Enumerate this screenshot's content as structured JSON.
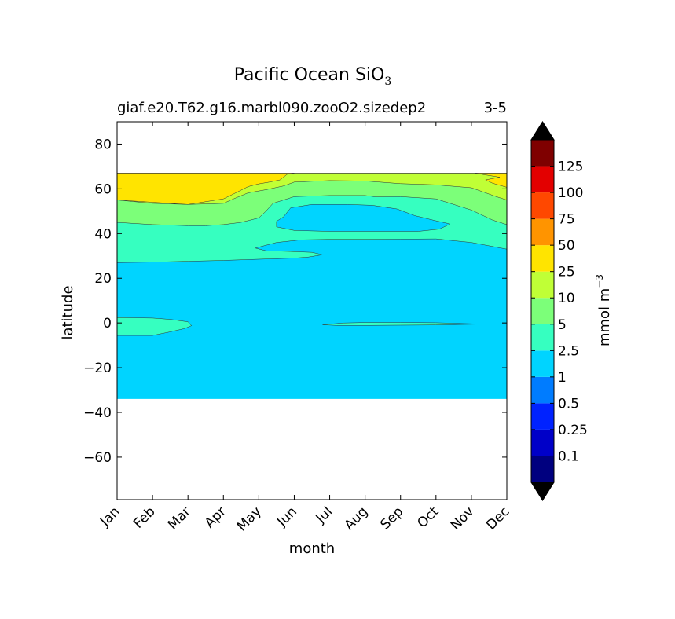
{
  "chart_data": {
    "type": "heatmap",
    "title": "Pacific Ocean SiO",
    "title_subscript": "3",
    "subtitle_left": "giaf.e20.T62.g16.marbl090.zooO2.sizedep2",
    "subtitle_right": "3-5",
    "xlabel": "month",
    "ylabel": "latitude",
    "x_categories": [
      "Jan",
      "Feb",
      "Mar",
      "Apr",
      "May",
      "Jun",
      "Jul",
      "Aug",
      "Sep",
      "Oct",
      "Nov",
      "Dec"
    ],
    "ylim": [
      -79,
      90
    ],
    "xlim": [
      0,
      11
    ],
    "y_ticks": [
      80,
      60,
      40,
      20,
      0,
      -20,
      -40,
      -60
    ],
    "y_tick_labels": [
      "80",
      "60",
      "40",
      "20",
      "0",
      "−20",
      "−40",
      "−60"
    ],
    "data_lat_range": [
      -34,
      67
    ],
    "colorbar": {
      "label": "mmol m",
      "label_superscript": "−3",
      "tick_labels": [
        "0.1",
        "0.25",
        "0.5",
        "1",
        "2.5",
        "5",
        "10",
        "25",
        "50",
        "75",
        "100",
        "125"
      ],
      "levels": [
        0.1,
        0.25,
        0.5,
        1,
        2.5,
        5,
        10,
        25,
        50,
        75,
        100,
        125
      ],
      "colors": [
        "#00007f",
        "#0000c8",
        "#0022ff",
        "#007cff",
        "#00d4ff",
        "#36ffc0",
        "#7cff79",
        "#c0ff36",
        "#ffe400",
        "#ff9400",
        "#ff4800",
        "#e30000",
        "#7f0000"
      ],
      "extend": "both",
      "under_color": "#000000",
      "over_color": "#000000"
    },
    "regions": [
      {
        "level": "1-2.5",
        "color": "#00d4ff",
        "polygon": [
          [
            0,
            -34
          ],
          [
            11,
            -34
          ],
          [
            11,
            67
          ],
          [
            0,
            67
          ]
        ]
      },
      {
        "level": "2.5-5",
        "color": "#36ffc0",
        "polygon": [
          [
            0,
            27
          ],
          [
            1,
            27.2
          ],
          [
            2,
            27.6
          ],
          [
            3,
            28
          ],
          [
            4,
            28.5
          ],
          [
            5,
            29
          ],
          [
            5.4,
            29.5
          ],
          [
            5.8,
            30.5
          ],
          [
            5.5,
            31.6
          ],
          [
            4.9,
            32
          ],
          [
            4.2,
            32.3
          ],
          [
            3.9,
            33.5
          ],
          [
            4.5,
            36
          ],
          [
            5.2,
            37.2
          ],
          [
            6,
            37.4
          ],
          [
            7,
            37.4
          ],
          [
            8,
            37.5
          ],
          [
            9,
            37.6
          ],
          [
            10,
            36
          ],
          [
            11,
            33
          ],
          [
            11,
            67
          ],
          [
            0,
            67
          ]
        ]
      },
      {
        "level": "2.5-5",
        "color": "#36ffc0",
        "polygon": [
          [
            0,
            2.4
          ],
          [
            1,
            2.2
          ],
          [
            1.5,
            1.6
          ],
          [
            2,
            0.5
          ],
          [
            2.1,
            -1.2
          ],
          [
            1.9,
            -2.5
          ],
          [
            1.5,
            -4
          ],
          [
            1,
            -5.6
          ],
          [
            0,
            -5.6
          ]
        ]
      },
      {
        "level": "2.5-5",
        "color": "#36ffc0",
        "polygon": [
          [
            5.8,
            -0.8
          ],
          [
            6.4,
            0
          ],
          [
            7,
            0.2
          ],
          [
            8,
            0.2
          ],
          [
            9,
            0.1
          ],
          [
            10.3,
            -0.5
          ],
          [
            9,
            -0.9
          ],
          [
            8,
            -1
          ],
          [
            7,
            -1.1
          ],
          [
            6.2,
            -1.1
          ]
        ]
      },
      {
        "level": "1-2.5",
        "color": "#00d4ff",
        "polygon": [
          [
            4.5,
            43
          ],
          [
            4.5,
            45.5
          ],
          [
            4.7,
            47.5
          ],
          [
            4.9,
            51.5
          ],
          [
            5.5,
            53
          ],
          [
            6.5,
            53
          ],
          [
            7.2,
            52.6
          ],
          [
            7.9,
            51
          ],
          [
            8.4,
            48
          ],
          [
            9,
            45.7
          ],
          [
            9.4,
            44.3
          ],
          [
            9.1,
            42
          ],
          [
            8.5,
            41
          ],
          [
            7,
            41
          ],
          [
            6,
            41
          ],
          [
            5,
            41.4
          ]
        ]
      },
      {
        "level": "5-10",
        "color": "#7cff79",
        "polygon": [
          [
            0,
            45
          ],
          [
            1,
            44
          ],
          [
            2,
            43.5
          ],
          [
            2.5,
            43.5
          ],
          [
            3,
            44
          ],
          [
            3.5,
            45
          ],
          [
            4,
            47
          ],
          [
            4.2,
            50
          ],
          [
            4.4,
            53.5
          ],
          [
            5,
            56.5
          ],
          [
            6,
            57
          ],
          [
            7,
            57
          ],
          [
            7.3,
            56.4
          ],
          [
            8,
            56.5
          ],
          [
            9,
            55.5
          ],
          [
            10,
            50.5
          ],
          [
            10.6,
            46
          ],
          [
            11,
            44
          ],
          [
            11,
            67
          ],
          [
            0,
            67
          ]
        ]
      },
      {
        "level": "10-25",
        "color": "#c0ff36",
        "polygon": [
          [
            0,
            55
          ],
          [
            1,
            53.5
          ],
          [
            2,
            53
          ],
          [
            3,
            53.5
          ],
          [
            3.3,
            55.6
          ],
          [
            3.7,
            58.2
          ],
          [
            4.2,
            59.6
          ],
          [
            4.7,
            61.3
          ],
          [
            5,
            63
          ],
          [
            6,
            63.7
          ],
          [
            7,
            63.5
          ],
          [
            8,
            62.3
          ],
          [
            9,
            61.8
          ],
          [
            10,
            60.5
          ],
          [
            10.7,
            56.5
          ],
          [
            11,
            55
          ],
          [
            11,
            67
          ],
          [
            0,
            67
          ]
        ]
      },
      {
        "level": "25-50",
        "color": "#ffe400",
        "polygon": [
          [
            0,
            67
          ],
          [
            5,
            67
          ],
          [
            4.8,
            66.5
          ],
          [
            4.6,
            64
          ],
          [
            4.3,
            63
          ],
          [
            4,
            62.2
          ],
          [
            3.7,
            61
          ],
          [
            3.3,
            57.8
          ],
          [
            3,
            55.5
          ],
          [
            2,
            53
          ],
          [
            1,
            54
          ],
          [
            0,
            55
          ]
        ]
      },
      {
        "level": "25-50",
        "color": "#ffe400",
        "polygon": [
          [
            10.1,
            67
          ],
          [
            11,
            67
          ],
          [
            11,
            60.7
          ],
          [
            10.6,
            62.5
          ],
          [
            10.4,
            64
          ],
          [
            10.8,
            65.2
          ],
          [
            10.3,
            66.5
          ]
        ]
      }
    ]
  }
}
